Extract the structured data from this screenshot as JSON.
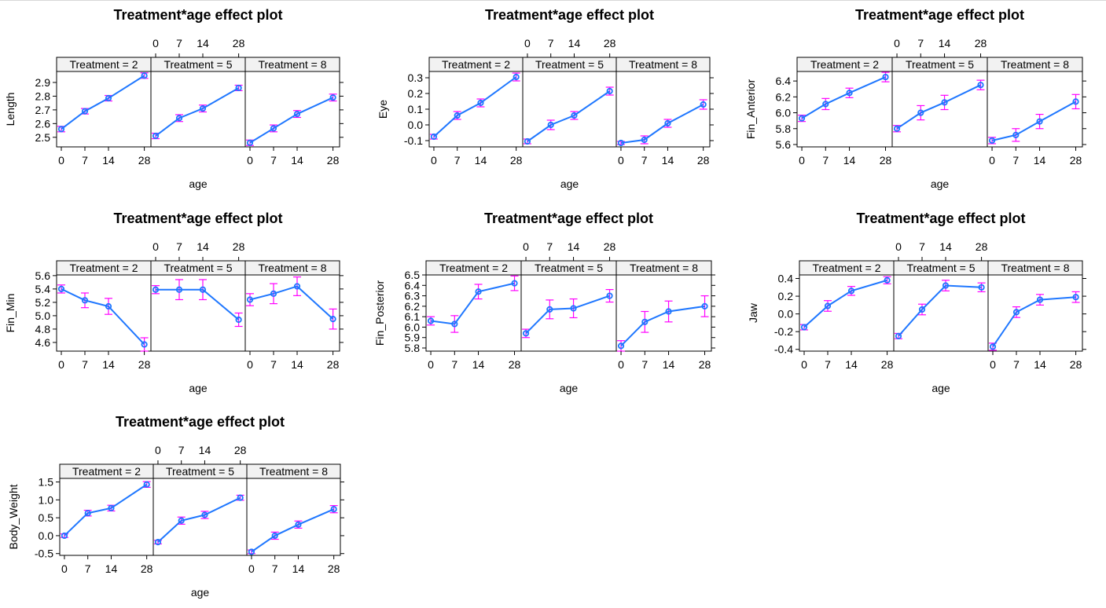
{
  "ages": [
    "0",
    "7",
    "14",
    "28"
  ],
  "x_label": "age",
  "line_color": "#1f77ff",
  "ci_color": "#ff00ff",
  "strip_bg": "#f2f2f2",
  "chart_data": [
    {
      "type": "line",
      "title": "Treatment*age effect plot",
      "ylabel": "Length",
      "xlabel": "age",
      "categories": [
        "0",
        "7",
        "14",
        "28"
      ],
      "ylim": [
        2.43,
        2.98
      ],
      "yticks": [
        "2.5",
        "2.6",
        "2.7",
        "2.8",
        "2.9"
      ],
      "ytick_values": [
        2.5,
        2.6,
        2.7,
        2.8,
        2.9
      ],
      "panels": [
        {
          "label": "Treatment = 2",
          "values": [
            2.56,
            2.69,
            2.785,
            2.95
          ],
          "lower": [
            2.54,
            2.67,
            2.765,
            2.93
          ],
          "upper": [
            2.58,
            2.71,
            2.805,
            2.97
          ]
        },
        {
          "label": "Treatment = 5",
          "values": [
            2.51,
            2.64,
            2.71,
            2.86
          ],
          "lower": [
            2.49,
            2.615,
            2.685,
            2.84
          ],
          "upper": [
            2.53,
            2.665,
            2.735,
            2.88
          ]
        },
        {
          "label": "Treatment = 8",
          "values": [
            2.46,
            2.565,
            2.67,
            2.79
          ],
          "lower": [
            2.44,
            2.54,
            2.645,
            2.765
          ],
          "upper": [
            2.48,
            2.59,
            2.695,
            2.815
          ]
        }
      ]
    },
    {
      "type": "line",
      "title": "Treatment*age effect plot",
      "ylabel": "Eye",
      "xlabel": "age",
      "categories": [
        "0",
        "7",
        "14",
        "28"
      ],
      "ylim": [
        -0.14,
        0.34
      ],
      "yticks": [
        "-0.1",
        "0.0",
        "0.1",
        "0.2",
        "0.3"
      ],
      "ytick_values": [
        -0.1,
        0.0,
        0.1,
        0.2,
        0.3
      ],
      "panels": [
        {
          "label": "Treatment = 2",
          "values": [
            -0.075,
            0.06,
            0.14,
            0.305
          ],
          "lower": [
            -0.09,
            0.035,
            0.115,
            0.28
          ],
          "upper": [
            -0.06,
            0.085,
            0.165,
            0.33
          ]
        },
        {
          "label": "Treatment = 5",
          "values": [
            -0.105,
            0.0,
            0.06,
            0.215
          ],
          "lower": [
            -0.12,
            -0.03,
            0.035,
            0.19
          ],
          "upper": [
            -0.09,
            0.03,
            0.085,
            0.24
          ]
        },
        {
          "label": "Treatment = 8",
          "values": [
            -0.115,
            -0.095,
            0.01,
            0.13
          ],
          "lower": [
            -0.125,
            -0.12,
            -0.015,
            0.1
          ],
          "upper": [
            -0.105,
            -0.07,
            0.035,
            0.16
          ]
        }
      ]
    },
    {
      "type": "line",
      "title": "Treatment*age effect plot",
      "ylabel": "Fin_Anterior",
      "xlabel": "age",
      "categories": [
        "0",
        "7",
        "14",
        "28"
      ],
      "ylim": [
        5.57,
        6.52
      ],
      "yticks": [
        "5.6",
        "5.8",
        "6.0",
        "6.2",
        "6.4"
      ],
      "ytick_values": [
        5.6,
        5.8,
        6.0,
        6.2,
        6.4
      ],
      "panels": [
        {
          "label": "Treatment = 2",
          "values": [
            5.93,
            6.11,
            6.25,
            6.45
          ],
          "lower": [
            5.89,
            6.04,
            6.19,
            6.39
          ],
          "upper": [
            5.97,
            6.18,
            6.31,
            6.51
          ]
        },
        {
          "label": "Treatment = 5",
          "values": [
            5.8,
            6.0,
            6.13,
            6.35
          ],
          "lower": [
            5.76,
            5.91,
            6.04,
            6.29
          ],
          "upper": [
            5.84,
            6.09,
            6.22,
            6.41
          ]
        },
        {
          "label": "Treatment = 8",
          "values": [
            5.65,
            5.72,
            5.89,
            6.14
          ],
          "lower": [
            5.61,
            5.64,
            5.8,
            6.05
          ],
          "upper": [
            5.69,
            5.8,
            5.98,
            6.23
          ]
        }
      ]
    },
    {
      "type": "line",
      "title": "Treatment*age effect plot",
      "ylabel": "Fin_Min",
      "xlabel": "age",
      "categories": [
        "0",
        "7",
        "14",
        "28"
      ],
      "ylim": [
        4.47,
        5.61
      ],
      "yticks": [
        "4.6",
        "4.8",
        "5.0",
        "5.2",
        "5.4",
        "5.6"
      ],
      "ytick_values": [
        4.6,
        4.8,
        5.0,
        5.2,
        5.4,
        5.6
      ],
      "panels": [
        {
          "label": "Treatment = 2",
          "values": [
            5.4,
            5.23,
            5.14,
            4.57
          ],
          "lower": [
            5.34,
            5.12,
            5.02,
            4.47
          ],
          "upper": [
            5.46,
            5.34,
            5.26,
            4.67
          ]
        },
        {
          "label": "Treatment = 5",
          "values": [
            5.39,
            5.39,
            5.39,
            4.94
          ],
          "lower": [
            5.33,
            5.24,
            5.24,
            4.84
          ],
          "upper": [
            5.45,
            5.54,
            5.54,
            5.04
          ]
        },
        {
          "label": "Treatment = 8",
          "values": [
            5.24,
            5.33,
            5.44,
            4.95
          ],
          "lower": [
            5.15,
            5.18,
            5.3,
            4.8
          ],
          "upper": [
            5.33,
            5.48,
            5.58,
            5.1
          ]
        }
      ]
    },
    {
      "type": "line",
      "title": "Treatment*age effect plot",
      "ylabel": "Fin_Posterior",
      "xlabel": "age",
      "categories": [
        "0",
        "7",
        "14",
        "28"
      ],
      "ylim": [
        5.77,
        6.5
      ],
      "yticks": [
        "5.8",
        "5.9",
        "6.0",
        "6.1",
        "6.2",
        "6.3",
        "6.4",
        "6.5"
      ],
      "ytick_values": [
        5.8,
        5.9,
        6.0,
        6.1,
        6.2,
        6.3,
        6.4,
        6.5
      ],
      "panels": [
        {
          "label": "Treatment = 2",
          "values": [
            6.06,
            6.03,
            6.34,
            6.42
          ],
          "lower": [
            6.02,
            5.95,
            6.27,
            6.35
          ],
          "upper": [
            6.1,
            6.11,
            6.41,
            6.49
          ]
        },
        {
          "label": "Treatment = 5",
          "values": [
            5.94,
            6.17,
            6.18,
            6.3
          ],
          "lower": [
            5.9,
            6.08,
            6.09,
            6.24
          ],
          "upper": [
            5.98,
            6.26,
            6.27,
            6.36
          ]
        },
        {
          "label": "Treatment = 8",
          "values": [
            5.82,
            6.05,
            6.15,
            6.2
          ],
          "lower": [
            5.77,
            5.95,
            6.05,
            6.1
          ],
          "upper": [
            5.87,
            6.15,
            6.25,
            6.3
          ]
        }
      ]
    },
    {
      "type": "line",
      "title": "Treatment*age effect plot",
      "ylabel": "Jaw",
      "xlabel": "age",
      "categories": [
        "0",
        "7",
        "14",
        "28"
      ],
      "ylim": [
        -0.42,
        0.44
      ],
      "yticks": [
        "-0.4",
        "-0.2",
        "0.0",
        "0.2",
        "0.4"
      ],
      "ytick_values": [
        -0.4,
        -0.2,
        0.0,
        0.2,
        0.4
      ],
      "panels": [
        {
          "label": "Treatment = 2",
          "values": [
            -0.15,
            0.09,
            0.26,
            0.38
          ],
          "lower": [
            -0.18,
            0.03,
            0.21,
            0.34
          ],
          "upper": [
            -0.12,
            0.15,
            0.31,
            0.42
          ]
        },
        {
          "label": "Treatment = 5",
          "values": [
            -0.25,
            0.05,
            0.32,
            0.3
          ],
          "lower": [
            -0.28,
            -0.01,
            0.26,
            0.25
          ],
          "upper": [
            -0.22,
            0.11,
            0.38,
            0.35
          ]
        },
        {
          "label": "Treatment = 8",
          "values": [
            -0.37,
            0.02,
            0.16,
            0.19
          ],
          "lower": [
            -0.41,
            -0.04,
            0.1,
            0.13
          ],
          "upper": [
            -0.33,
            0.08,
            0.22,
            0.25
          ]
        }
      ]
    },
    {
      "type": "line",
      "title": "Treatment*age effect plot",
      "ylabel": "Body_Weight",
      "xlabel": "age",
      "categories": [
        "0",
        "7",
        "14",
        "28"
      ],
      "ylim": [
        -0.55,
        1.6
      ],
      "yticks": [
        "-0.5",
        "0.0",
        "0.5",
        "1.0",
        "1.5"
      ],
      "ytick_values": [
        -0.5,
        0.0,
        0.5,
        1.0,
        1.5
      ],
      "panels": [
        {
          "label": "Treatment = 2",
          "values": [
            0.0,
            0.63,
            0.77,
            1.43
          ],
          "lower": [
            -0.05,
            0.55,
            0.69,
            1.35
          ],
          "upper": [
            0.05,
            0.71,
            0.85,
            1.51
          ]
        },
        {
          "label": "Treatment = 5",
          "values": [
            -0.18,
            0.42,
            0.58,
            1.06
          ],
          "lower": [
            -0.23,
            0.32,
            0.48,
            0.99
          ],
          "upper": [
            -0.13,
            0.52,
            0.68,
            1.13
          ]
        },
        {
          "label": "Treatment = 8",
          "values": [
            -0.45,
            0.0,
            0.31,
            0.74
          ],
          "lower": [
            -0.5,
            -0.1,
            0.21,
            0.64
          ],
          "upper": [
            -0.4,
            0.1,
            0.41,
            0.84
          ]
        }
      ]
    }
  ]
}
